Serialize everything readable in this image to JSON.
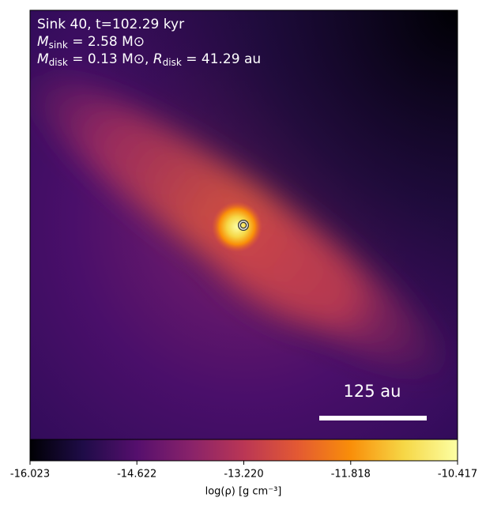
{
  "chart_data": {
    "type": "image",
    "annotations": {
      "line1": "Sink 40, t=102.29 kyr",
      "line2": {
        "var": "M",
        "sub": "sink",
        "rest": " = 2.58 M⊙"
      },
      "line3": [
        {
          "var": "M",
          "sub": "disk",
          "rest": " = 0.13 M⊙, "
        },
        {
          "var": "R",
          "sub": "disk",
          "rest": " = 41.29 au"
        }
      ]
    },
    "scale_bar": "125 au",
    "colorbar": {
      "label": "log(ρ) [g cm⁻³]",
      "lim": [
        -16.023,
        -10.417
      ],
      "ticks": [
        -16.023,
        -14.622,
        {
          "value": -13.22,
          "label": "-13.220"
        },
        -11.818,
        -10.417
      ],
      "colormap": [
        "#000004",
        "#1f0c48",
        "#550f6d",
        "#88226a",
        "#ba3655",
        "#e35933",
        "#f98e09",
        "#f6d746",
        "#fcffa4"
      ]
    }
  }
}
